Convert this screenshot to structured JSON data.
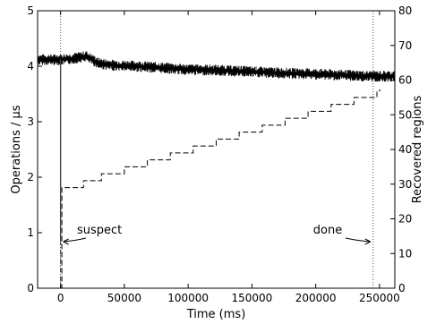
{
  "chart_data": {
    "type": "line",
    "xlabel": "Time (ms)",
    "ylabel_left": "Operations / μs",
    "ylabel_right": "Recovered regions",
    "xlim": [
      -18000,
      262000
    ],
    "ylim_left": [
      0,
      5
    ],
    "ylim_right": [
      0,
      80
    ],
    "x_ticks": [
      0,
      50000,
      100000,
      150000,
      200000,
      250000
    ],
    "y_ticks_left": [
      0,
      1,
      2,
      3,
      4,
      5
    ],
    "y_ticks_right": [
      0,
      10,
      20,
      30,
      40,
      50,
      60,
      70,
      80
    ],
    "grid": false,
    "throughput": {
      "axis": "left",
      "style": "solid noisy band",
      "x": [
        -18000,
        0,
        10000,
        20000,
        30000,
        40000,
        60000,
        80000,
        100000,
        120000,
        140000,
        160000,
        180000,
        200000,
        220000,
        240000,
        262000
      ],
      "y": [
        4.12,
        4.12,
        4.14,
        4.18,
        4.05,
        4.02,
        4.0,
        3.97,
        3.94,
        3.93,
        3.91,
        3.89,
        3.87,
        3.86,
        3.84,
        3.82,
        3.82
      ],
      "band": 0.1,
      "drop_at": 0,
      "drop_to": 0.85
    },
    "recovered_regions": {
      "axis": "right",
      "style": "dashed step",
      "x": [
        0,
        1000,
        2000,
        18000,
        32000,
        50000,
        68000,
        86000,
        104000,
        122000,
        140000,
        158000,
        176000,
        194000,
        212000,
        230000,
        248000
      ],
      "y": [
        0,
        29,
        29,
        31,
        33,
        35,
        37,
        39,
        41,
        43,
        45,
        47,
        49,
        51,
        53,
        55,
        57
      ]
    },
    "markers": [
      {
        "x": 0,
        "label": "suspect"
      },
      {
        "x": 245000,
        "label": "done"
      }
    ]
  }
}
